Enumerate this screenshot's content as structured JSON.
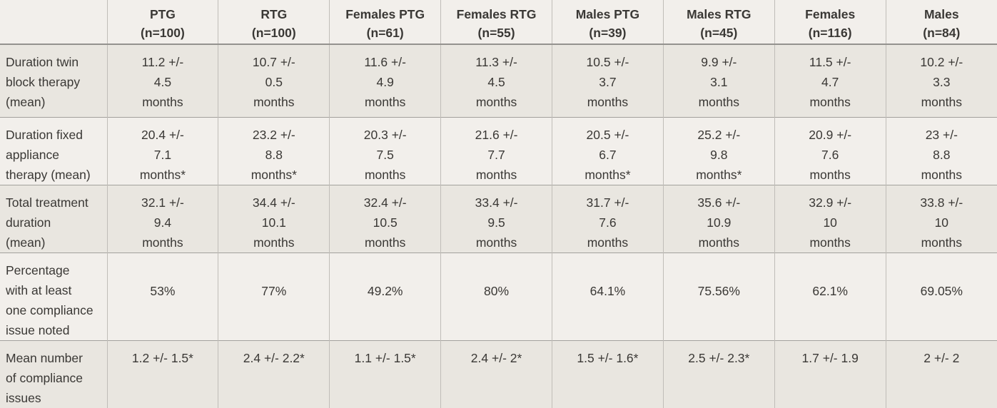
{
  "colors": {
    "bg-light": "#f2efeb",
    "bg-dark": "#e9e6e0",
    "text": "#3a3835",
    "h-border": "#a3a19d",
    "h-border-strong": "#94928e",
    "v-border": "#c0bdb8"
  },
  "table": {
    "corner_label": "",
    "columns": [
      "PTG\n(n=100)",
      "RTG\n(n=100)",
      "Females PTG\n(n=61)",
      "Females RTG\n(n=55)",
      "Males PTG\n(n=39)",
      "Males RTG\n(n=45)",
      "Females\n(n=116)",
      "Males\n(n=84)"
    ],
    "rows": [
      {
        "label": "Duration twin\nblock therapy\n(mean)",
        "values": [
          "11.2 +/-\n4.5\nmonths",
          "10.7 +/-\n0.5\nmonths",
          "11.6 +/-\n4.9\nmonths",
          "11.3 +/-\n4.5\nmonths",
          "10.5 +/-\n3.7\nmonths",
          "9.9 +/-\n3.1\nmonths",
          "11.5 +/-\n4.7\nmonths",
          "10.2 +/-\n3.3\nmonths"
        ]
      },
      {
        "label": "Duration fixed\nappliance\ntherapy (mean)",
        "values": [
          "20.4 +/-\n7.1\nmonths*",
          "23.2 +/-\n8.8\nmonths*",
          "20.3 +/-\n7.5\nmonths",
          "21.6 +/-\n7.7\nmonths",
          "20.5 +/-\n6.7\nmonths*",
          "25.2 +/-\n9.8\nmonths*",
          "20.9 +/-\n7.6\nmonths",
          "23 +/-\n8.8\nmonths"
        ]
      },
      {
        "label": "Total treatment\nduration\n(mean)",
        "values": [
          "32.1 +/-\n9.4\nmonths",
          "34.4 +/-\n10.1\nmonths",
          "32.4 +/-\n10.5\nmonths",
          "33.4 +/-\n9.5\nmonths",
          "31.7 +/-\n7.6\nmonths",
          "35.6 +/-\n10.9\nmonths",
          "32.9 +/-\n10\nmonths",
          "33.8 +/-\n10\nmonths"
        ]
      },
      {
        "label": "Percentage\nwith at least\none compliance\nissue noted",
        "values": [
          "53%",
          "77%",
          "49.2%",
          "80%",
          "64.1%",
          "75.56%",
          "62.1%",
          "69.05%"
        ]
      },
      {
        "label": "Mean number\nof compliance\nissues",
        "values": [
          "1.2 +/- 1.5*",
          "2.4 +/- 2.2*",
          "1.1 +/- 1.5*",
          "2.4 +/- 2*",
          "1.5 +/- 1.6*",
          "2.5 +/- 2.3*",
          "1.7 +/- 1.9",
          "2 +/- 2"
        ]
      }
    ]
  }
}
